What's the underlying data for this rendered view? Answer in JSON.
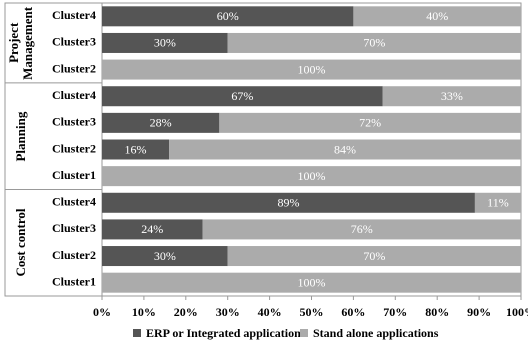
{
  "chart_data": {
    "type": "stacked_bar_horizontal",
    "groups": [
      {
        "label": "Project Management",
        "categories": [
          "Cluster4",
          "Cluster3",
          "Cluster2"
        ]
      },
      {
        "label": "Planning",
        "categories": [
          "Cluster4",
          "Cluster3",
          "Cluster2",
          "Cluster1"
        ]
      },
      {
        "label": "Cost control",
        "categories": [
          "Cluster4",
          "Cluster3",
          "Cluster2",
          "Cluster1"
        ]
      }
    ],
    "series": [
      {
        "name": "ERP or Integrated applications",
        "color": "#555555",
        "values": [
          60,
          30,
          0,
          67,
          28,
          16,
          0,
          89,
          24,
          30,
          0
        ],
        "value_labels": [
          "60%",
          "30%",
          null,
          "67%",
          "28%",
          "16%",
          null,
          "89%",
          "24%",
          "30%",
          null
        ]
      },
      {
        "name": "Stand alone applications",
        "color": "#ababab",
        "values": [
          40,
          70,
          100,
          33,
          72,
          84,
          100,
          11,
          76,
          70,
          100
        ],
        "value_labels": [
          "40%",
          "70%",
          "100%",
          "33%",
          "72%",
          "84%",
          "100%",
          "11%",
          "76%",
          "70%",
          "100%"
        ]
      }
    ],
    "xlim": [
      0,
      100
    ],
    "xticks": [
      {
        "value": 0,
        "label": "0%"
      },
      {
        "value": 10,
        "label": "10%"
      },
      {
        "value": 20,
        "label": "20%"
      },
      {
        "value": 30,
        "label": "30%"
      },
      {
        "value": 40,
        "label": "40%"
      },
      {
        "value": 50,
        "label": "50%"
      },
      {
        "value": 60,
        "label": "60%"
      },
      {
        "value": 70,
        "label": "70%"
      },
      {
        "value": 80,
        "label": "80%"
      },
      {
        "value": 90,
        "label": "90%"
      },
      {
        "value": 100,
        "label": "100%"
      }
    ],
    "legend": "bottom"
  }
}
